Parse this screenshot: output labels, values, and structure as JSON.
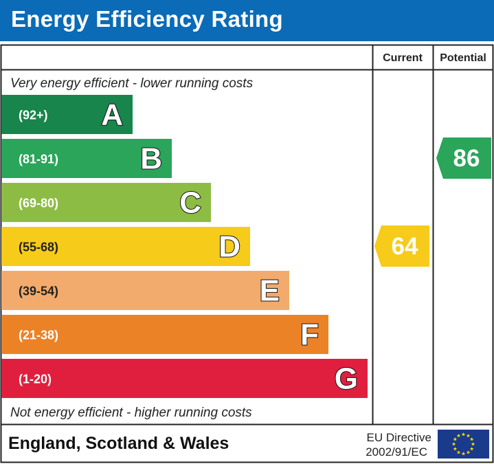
{
  "header": {
    "title": "Energy Efficiency Rating"
  },
  "columns": {
    "current": "Current",
    "potential": "Potential"
  },
  "top_note": "Very energy efficient - lower running costs",
  "bottom_note": "Not energy efficient - higher running costs",
  "footer": {
    "region": "England, Scotland & Wales",
    "directive_line1": "EU Directive",
    "directive_line2": "2002/91/EC"
  },
  "chart_data": {
    "type": "bar",
    "title": "Energy Efficiency Rating",
    "bands": [
      {
        "letter": "A",
        "range": "(92+)",
        "min": 92,
        "max": 100,
        "color": "#17854c"
      },
      {
        "letter": "B",
        "range": "(81-91)",
        "min": 81,
        "max": 91,
        "color": "#2aa55a"
      },
      {
        "letter": "C",
        "range": "(69-80)",
        "min": 69,
        "max": 80,
        "color": "#8dbc45"
      },
      {
        "letter": "D",
        "range": "(55-68)",
        "min": 55,
        "max": 68,
        "color": "#f6cb1a"
      },
      {
        "letter": "E",
        "range": "(39-54)",
        "min": 39,
        "max": 54,
        "color": "#f2ab6c"
      },
      {
        "letter": "F",
        "range": "(21-38)",
        "min": 21,
        "max": 38,
        "color": "#ec8226"
      },
      {
        "letter": "G",
        "range": "(1-20)",
        "min": 1,
        "max": 20,
        "color": "#e01f3e"
      }
    ],
    "current": {
      "value": 64,
      "band": "D",
      "color": "#f6cb1a"
    },
    "potential": {
      "value": 86,
      "band": "B",
      "color": "#2aa55a"
    }
  }
}
